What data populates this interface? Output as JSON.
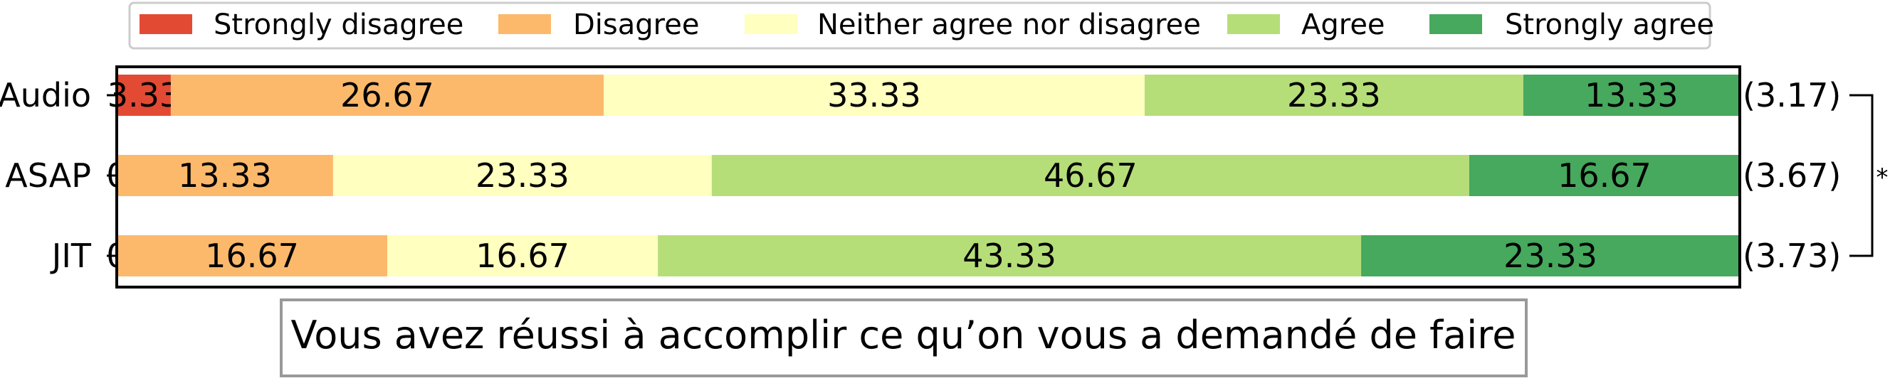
{
  "chart_data": {
    "type": "bar",
    "orientation": "horizontal",
    "stacked": true,
    "categories": [
      "Audio",
      "ASAP",
      "JIT"
    ],
    "series": [
      {
        "name": "Strongly disagree",
        "color": "#e34a33",
        "values": [
          3.33,
          0,
          0
        ],
        "labels": [
          "3.33",
          "0",
          "0"
        ]
      },
      {
        "name": "Disagree",
        "color": "#fdb96b",
        "values": [
          26.67,
          13.33,
          16.67
        ],
        "labels": [
          "26.67",
          "13.33",
          "16.67"
        ]
      },
      {
        "name": "Neither agree nor disagree",
        "color": "#ffffbf",
        "values": [
          33.33,
          23.33,
          16.67
        ],
        "labels": [
          "33.33",
          "23.33",
          "16.67"
        ]
      },
      {
        "name": "Agree",
        "color": "#b5de78",
        "values": [
          23.33,
          46.67,
          43.33
        ],
        "labels": [
          "23.33",
          "46.67",
          "43.33"
        ]
      },
      {
        "name": "Strongly agree",
        "color": "#46a95d",
        "values": [
          13.33,
          16.67,
          23.33
        ],
        "labels": [
          "13.33",
          "16.67",
          "23.33"
        ]
      }
    ],
    "means": [
      "(3.17)",
      "(3.67)",
      "(3.73)"
    ],
    "significance": {
      "from": "Audio",
      "to": "JIT",
      "label": "*"
    },
    "xlim": [
      0,
      100
    ],
    "legend_position": "top",
    "title": "Vous avez réussi à accomplir ce qu’on vous a demandé de faire"
  }
}
